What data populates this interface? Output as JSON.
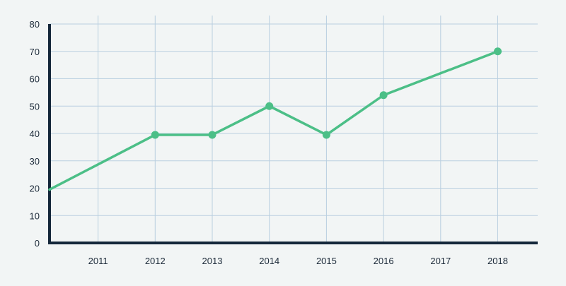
{
  "chart_data": {
    "type": "line",
    "title": "",
    "xlabel": "",
    "ylabel": "",
    "x_tick_labels": [
      "2011",
      "2012",
      "2013",
      "2014",
      "2015",
      "2016",
      "2017",
      "2018"
    ],
    "y_tick_labels": [
      "0",
      "10",
      "20",
      "30",
      "40",
      "50",
      "60",
      "70",
      "80"
    ],
    "xlim": [
      2010.15,
      2018.7
    ],
    "ylim": [
      0,
      80
    ],
    "grid": true,
    "series": [
      {
        "x": [
          2010.15,
          2012,
          2013,
          2014,
          2015,
          2016,
          2018
        ],
        "y": [
          19.5,
          39.5,
          39.5,
          50,
          39.5,
          54,
          70
        ],
        "markers": [
          false,
          true,
          true,
          true,
          true,
          true,
          true
        ]
      }
    ],
    "colors": {
      "line": "#4cbf87",
      "grid": "#b9cfe0",
      "axis": "#14273a",
      "background": "#f2f5f5"
    }
  }
}
